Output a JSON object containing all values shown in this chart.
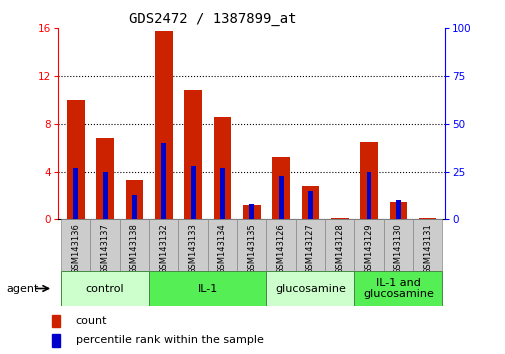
{
  "title": "GDS2472 / 1387899_at",
  "samples": [
    "GSM143136",
    "GSM143137",
    "GSM143138",
    "GSM143132",
    "GSM143133",
    "GSM143134",
    "GSM143135",
    "GSM143126",
    "GSM143127",
    "GSM143128",
    "GSM143129",
    "GSM143130",
    "GSM143131"
  ],
  "count_values": [
    10.0,
    6.8,
    3.3,
    15.8,
    10.8,
    8.6,
    1.2,
    5.2,
    2.8,
    0.1,
    6.5,
    1.5,
    0.1
  ],
  "percentile_values": [
    27,
    25,
    13,
    40,
    28,
    27,
    8,
    23,
    15,
    0,
    25,
    10,
    0
  ],
  "groups": [
    {
      "label": "control",
      "start": 0,
      "end": 3,
      "color": "#ccffcc"
    },
    {
      "label": "IL-1",
      "start": 3,
      "end": 7,
      "color": "#55ee55"
    },
    {
      "label": "glucosamine",
      "start": 7,
      "end": 10,
      "color": "#ccffcc"
    },
    {
      "label": "IL-1 and\nglucosamine",
      "start": 10,
      "end": 13,
      "color": "#55ee55"
    }
  ],
  "ylim_left": [
    0,
    16
  ],
  "ylim_right": [
    0,
    100
  ],
  "yticks_left": [
    0,
    4,
    8,
    12,
    16
  ],
  "yticks_right": [
    0,
    25,
    50,
    75,
    100
  ],
  "bar_color_red": "#cc2200",
  "bar_color_blue": "#0000cc",
  "bar_width": 0.6,
  "agent_label": "agent",
  "legend_count": "count",
  "legend_pct": "percentile rank within the sample",
  "title_fontsize": 10,
  "tick_fontsize": 7.5,
  "sample_fontsize": 6,
  "group_fontsize": 8
}
